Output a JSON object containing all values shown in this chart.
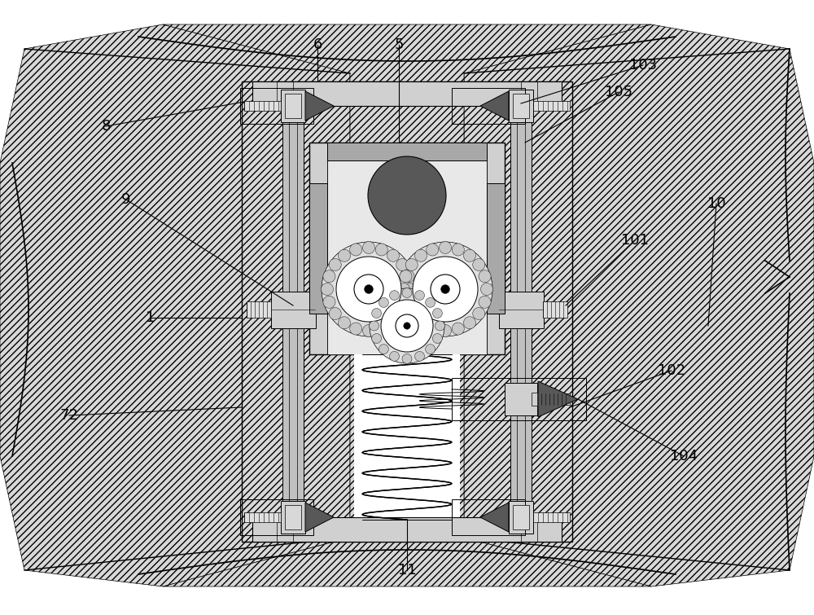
{
  "bg_color": "#ffffff",
  "line_color": "#000000",
  "hatch_gray": "#d8d8d8",
  "light_gray": "#d0d0d0",
  "mid_gray": "#a8a8a8",
  "dark_gray": "#585858",
  "box_gray": "#c8c8c8",
  "inner_gray": "#e0e0e0"
}
